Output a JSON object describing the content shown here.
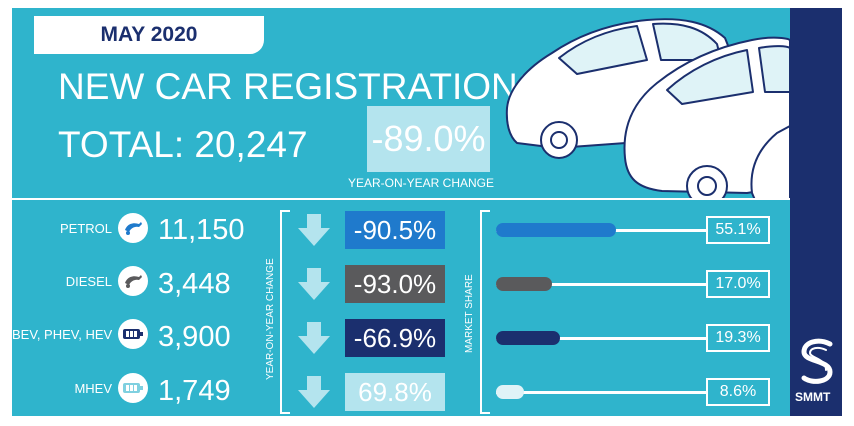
{
  "header": {
    "date": "MAY 2020",
    "title": "NEW CAR REGISTRATIONS",
    "total_label": "TOTAL: 20,247",
    "total_change": "-89.0%",
    "total_change_label": "YEAR-ON-YEAR CHANGE"
  },
  "axis_labels": {
    "change": "YEAR-ON-YEAR CHANGE",
    "share": "MARKET SHARE"
  },
  "brand": {
    "name": "SMMT"
  },
  "rows": [
    {
      "label": "PETROL",
      "icon": "fuel-pump-icon",
      "count": "11,150",
      "change": "-90.5%",
      "share": "55.1%",
      "share_value": 55.1,
      "color": "#1f7acc"
    },
    {
      "label": "DIESEL",
      "icon": "fuel-pump-icon",
      "count": "3,448",
      "change": "-93.0%",
      "share": "17.0%",
      "share_value": 17.0,
      "color": "#5a5a5c"
    },
    {
      "label": "BEV, PHEV, HEV",
      "icon": "battery-icon",
      "count": "3,900",
      "change": "-66.9%",
      "share": "19.3%",
      "share_value": 19.3,
      "color": "#1b2f6e"
    },
    {
      "label": "MHEV",
      "icon": "battery-icon",
      "count": "1,749",
      "change": "69.8%",
      "share": "8.6%",
      "share_value": 8.6,
      "color": "#b4e4ee"
    }
  ],
  "colors": {
    "background": "#2fb4cc",
    "navy": "#1b2f6e",
    "white": "#ffffff"
  }
}
